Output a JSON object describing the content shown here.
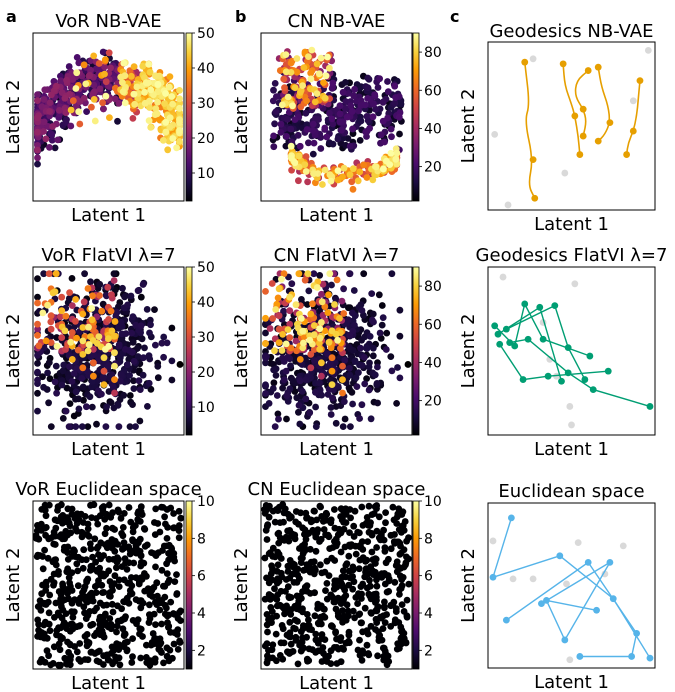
{
  "panel_letters": [
    "a",
    "b",
    "c"
  ],
  "colormap": {
    "name": "inferno",
    "stops": [
      "#000004",
      "#1b0c41",
      "#4a0c6b",
      "#781c6d",
      "#a52c60",
      "#cf4446",
      "#ed6925",
      "#fb9b06",
      "#f7d13d",
      "#fcffa4"
    ]
  },
  "geodesic_colors": [
    "#e69f00",
    "#009e73",
    "#56b4e9"
  ],
  "background_point_color": "#d9d9d9",
  "chart_data": [
    {
      "id": "vor_nbvae",
      "type": "scatter",
      "title": "VoR NB-VAE",
      "xlabel": "Latent 1",
      "ylabel": "Latent 2",
      "colorbar": {
        "range": [
          2,
          50
        ],
        "ticks": [
          10,
          20,
          30,
          40,
          50
        ]
      },
      "shape": "nbvae_vor"
    },
    {
      "id": "cn_nbvae",
      "type": "scatter",
      "title": "CN NB-VAE",
      "xlabel": "Latent 1",
      "ylabel": "Latent 2",
      "colorbar": {
        "range": [
          2,
          90
        ],
        "ticks": [
          20,
          40,
          60,
          80
        ]
      },
      "shape": "nbvae_cn"
    },
    {
      "id": "geo_nbvae",
      "type": "line",
      "title": "Geodesics NB-VAE",
      "xlabel": "Latent 1",
      "ylabel": "Latent 2",
      "style": "curve",
      "color_index": 0,
      "paths": [
        [
          [
            0.22,
            0.88
          ],
          [
            0.25,
            0.63
          ],
          [
            0.22,
            0.53
          ],
          [
            0.27,
            0.3
          ],
          [
            0.24,
            0.15
          ],
          [
            0.28,
            0.07
          ]
        ],
        [
          [
            0.45,
            0.87
          ],
          [
            0.46,
            0.74
          ],
          [
            0.5,
            0.63
          ],
          [
            0.52,
            0.56
          ],
          [
            0.54,
            0.44
          ],
          [
            0.55,
            0.33
          ]
        ],
        [
          [
            0.6,
            0.83
          ],
          [
            0.53,
            0.77
          ],
          [
            0.52,
            0.68
          ],
          [
            0.57,
            0.6
          ],
          [
            0.59,
            0.53
          ],
          [
            0.57,
            0.44
          ]
        ],
        [
          [
            0.66,
            0.85
          ],
          [
            0.68,
            0.73
          ],
          [
            0.72,
            0.62
          ],
          [
            0.73,
            0.52
          ],
          [
            0.7,
            0.45
          ],
          [
            0.66,
            0.41
          ]
        ],
        [
          [
            0.91,
            0.77
          ],
          [
            0.9,
            0.66
          ],
          [
            0.89,
            0.56
          ],
          [
            0.87,
            0.47
          ],
          [
            0.84,
            0.4
          ],
          [
            0.83,
            0.33
          ]
        ]
      ],
      "background": [
        [
          0.04,
          0.45
        ],
        [
          0.27,
          0.9
        ],
        [
          0.12,
          0.03
        ],
        [
          0.87,
          0.65
        ],
        [
          0.96,
          0.95
        ],
        [
          0.46,
          0.22
        ]
      ]
    },
    {
      "id": "vor_flatvi",
      "type": "scatter",
      "title": "VoR FlatVI λ=7",
      "xlabel": "Latent 1",
      "ylabel": "Latent 2",
      "colorbar": {
        "range": [
          2,
          50
        ],
        "ticks": [
          10,
          20,
          30,
          40,
          50
        ]
      },
      "shape": "flat_vor"
    },
    {
      "id": "cn_flatvi",
      "type": "scatter",
      "title": "CN FlatVI λ=7",
      "xlabel": "Latent 1",
      "ylabel": "Latent 2",
      "colorbar": {
        "range": [
          2,
          90
        ],
        "ticks": [
          20,
          40,
          60,
          80
        ]
      },
      "shape": "flat_cn"
    },
    {
      "id": "geo_flatvi",
      "type": "line",
      "title": "Geodesics FlatVI λ=7",
      "xlabel": "Latent 1",
      "ylabel": "Latent 2",
      "style": "polyline",
      "color_index": 1,
      "paths": [
        [
          [
            0.13,
            0.55
          ],
          [
            0.24,
            0.57
          ],
          [
            0.48,
            0.37
          ],
          [
            0.63,
            0.27
          ],
          [
            0.97,
            0.17
          ]
        ],
        [
          [
            0.04,
            0.65
          ],
          [
            0.16,
            0.53
          ],
          [
            0.22,
            0.78
          ],
          [
            0.33,
            0.57
          ],
          [
            0.61,
            0.47
          ]
        ],
        [
          [
            0.11,
            0.63
          ],
          [
            0.4,
            0.77
          ],
          [
            0.48,
            0.52
          ],
          [
            0.58,
            0.33
          ]
        ],
        [
          [
            0.07,
            0.54
          ],
          [
            0.21,
            0.33
          ],
          [
            0.36,
            0.35
          ],
          [
            0.72,
            0.38
          ]
        ],
        [
          [
            0.06,
            0.6
          ],
          [
            0.31,
            0.76
          ],
          [
            0.44,
            0.32
          ]
        ]
      ],
      "background": [
        [
          0.09,
          0.94
        ],
        [
          0.52,
          0.9
        ],
        [
          0.33,
          0.67
        ],
        [
          0.41,
          0.35
        ],
        [
          0.37,
          0.45
        ],
        [
          0.49,
          0.17
        ],
        [
          0.5,
          0.06
        ]
      ]
    },
    {
      "id": "vor_euclid",
      "type": "scatter",
      "title": "VoR Euclidean space",
      "xlabel": "Latent 1",
      "ylabel": "Latent 2",
      "colorbar": {
        "range": [
          1,
          10
        ],
        "ticks": [
          2,
          4,
          6,
          8,
          10
        ]
      },
      "shape": "euclid"
    },
    {
      "id": "cn_euclid",
      "type": "scatter",
      "title": "CN Euclidean space",
      "xlabel": "Latent 1",
      "ylabel": "Latent 2",
      "colorbar": {
        "range": [
          1,
          10
        ],
        "ticks": [
          2,
          4,
          6,
          8,
          10
        ]
      },
      "shape": "euclid"
    },
    {
      "id": "geo_euclid",
      "type": "line",
      "title": "Euclidean space",
      "xlabel": "Latent 1",
      "ylabel": "Latent 2",
      "style": "polyline",
      "color_index": 2,
      "paths": [
        [
          [
            0.14,
            0.91
          ],
          [
            0.03,
            0.55
          ],
          [
            0.43,
            0.68
          ],
          [
            0.75,
            0.42
          ],
          [
            0.97,
            0.06
          ]
        ],
        [
          [
            0.11,
            0.29
          ],
          [
            0.6,
            0.64
          ],
          [
            0.89,
            0.21
          ],
          [
            0.86,
            0.07
          ],
          [
            0.55,
            0.07
          ]
        ],
        [
          [
            0.32,
            0.39
          ],
          [
            0.73,
            0.64
          ],
          [
            0.46,
            0.17
          ],
          [
            0.35,
            0.41
          ],
          [
            0.65,
            0.35
          ]
        ]
      ],
      "background": [
        [
          0.03,
          0.77
        ],
        [
          0.15,
          0.54
        ],
        [
          0.27,
          0.54
        ],
        [
          0.47,
          0.51
        ],
        [
          0.54,
          0.76
        ],
        [
          0.7,
          0.57
        ],
        [
          0.81,
          0.74
        ],
        [
          0.49,
          0.05
        ]
      ]
    }
  ]
}
